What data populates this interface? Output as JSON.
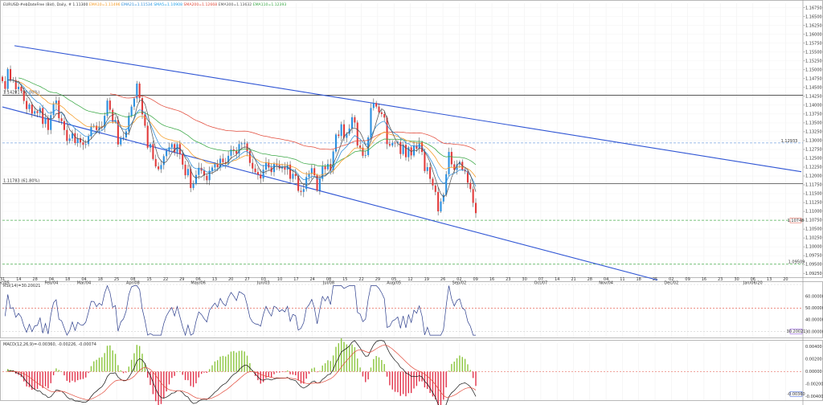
{
  "header": {
    "symbol": "EURUSD-#ebDateFree (Bid), Daily, # 1.11300",
    "indicators": [
      {
        "text": "EMA10=1.11496",
        "color": "#f59a23"
      },
      {
        "text": "EMA21=1.11534",
        "color": "#2b8cd8"
      },
      {
        "text": "SMA5=1.10908",
        "color": "#1f9fe8"
      },
      {
        "text": "SMA200=1.12668",
        "color": "#e24b3b"
      },
      {
        "text": "EMA300=1.13632",
        "color": "#555555"
      },
      {
        "text": "EMA110=1.12393",
        "color": "#3aa845"
      }
    ]
  },
  "chart_data": [
    {
      "type": "candlestick",
      "name": "price",
      "x_labels": [
        "31 Dec/05",
        "14",
        "28",
        "04 Feb/04",
        "18",
        "04 Mar/04",
        "18",
        "25",
        "08 Apr/08",
        "15",
        "22",
        "29",
        "06 May/06",
        "13",
        "20",
        "27",
        "03 Jun/03",
        "10",
        "17",
        "24",
        "08 Jul/08",
        "15",
        "22",
        "29",
        "05 Aug/05",
        "12",
        "19",
        "26",
        "02 Sep/02",
        "09",
        "16",
        "23",
        "30",
        "07 Oct/07",
        "14",
        "21",
        "28",
        "04 Nov/04",
        "11",
        "18",
        "25",
        "02 Dec/02",
        "09",
        "16",
        "23",
        "30",
        "06 Jan/06/20",
        "13",
        "20"
      ],
      "x_labels_display": [
        "31",
        "14",
        "28",
        "04",
        "18",
        "04",
        "18",
        "25",
        "08",
        "15",
        "22",
        "29",
        "06",
        "13",
        "20",
        "27",
        "03",
        "10",
        "17",
        "24",
        "08",
        "15",
        "22",
        "29",
        "05",
        "12",
        "19",
        "26",
        "02",
        "09",
        "16",
        "23",
        "30",
        "07",
        "14",
        "21",
        "28",
        "04",
        "11",
        "18",
        "25",
        "02",
        "09",
        "16",
        "23",
        "30",
        "06",
        "13",
        "20"
      ],
      "x_sub_labels": [
        "Dec/05",
        "Feb/04",
        "Mar/04",
        "Apr/08",
        "May/06",
        "Jun/03",
        "Jul/08",
        "Aug/05",
        "Sep/02",
        "Oct/07",
        "Nov/04",
        "Dec/02",
        "Jan/06/20"
      ],
      "y_ticks": [
        "1.16750",
        "1.16500",
        "1.16250",
        "1.16000",
        "1.15750",
        "1.15500",
        "1.15250",
        "1.15000",
        "1.14750",
        "1.14500",
        "1.14250",
        "1.14000",
        "1.13750",
        "1.13500",
        "1.13250",
        "1.13000",
        "1.12750",
        "1.12500",
        "1.12250",
        "1.12000",
        "1.11750",
        "1.11500",
        "1.11250",
        "1.11000",
        "1.10750",
        "1.10500",
        "1.10250",
        "1.10000",
        "1.09750",
        "1.09500",
        "1.09250"
      ],
      "ylim": [
        1.0914,
        1.1688
      ],
      "closes": [
        1.1468,
        1.1446,
        1.1502,
        1.1469,
        1.1471,
        1.1445,
        1.1452,
        1.144,
        1.1412,
        1.1389,
        1.1402,
        1.1376,
        1.1383,
        1.1378,
        1.1392,
        1.1347,
        1.1364,
        1.133,
        1.1372,
        1.1403,
        1.1413,
        1.1363,
        1.1355,
        1.133,
        1.1299,
        1.1306,
        1.1321,
        1.1293,
        1.1307,
        1.1295,
        1.1288,
        1.129,
        1.1312,
        1.134,
        1.1342,
        1.133,
        1.134,
        1.1336,
        1.137,
        1.1413,
        1.1387,
        1.1353,
        1.1358,
        1.1289,
        1.1306,
        1.1309,
        1.1326,
        1.137,
        1.1396,
        1.1419,
        1.1461,
        1.142,
        1.1374,
        1.1342,
        1.128,
        1.129,
        1.1248,
        1.1227,
        1.1219,
        1.1231,
        1.1256,
        1.1271,
        1.1281,
        1.129,
        1.1267,
        1.129,
        1.1262,
        1.1232,
        1.1202,
        1.122,
        1.1166,
        1.1178,
        1.1203,
        1.1223,
        1.1215,
        1.1201,
        1.1188,
        1.1215,
        1.1224,
        1.1234,
        1.1225,
        1.1249,
        1.1239,
        1.1234,
        1.1257,
        1.1275,
        1.1271,
        1.1263,
        1.129,
        1.1292,
        1.1292,
        1.127,
        1.1237,
        1.1221,
        1.1211,
        1.1204,
        1.1193,
        1.1218,
        1.1238,
        1.1224,
        1.1211,
        1.1235,
        1.1231,
        1.1221,
        1.1225,
        1.1218,
        1.1232,
        1.1192,
        1.1206,
        1.12,
        1.1158,
        1.1155,
        1.1163,
        1.1197,
        1.1206,
        1.1222,
        1.1202,
        1.1159,
        1.1192,
        1.1227,
        1.1219,
        1.1234,
        1.1216,
        1.1269,
        1.1317,
        1.1313,
        1.1346,
        1.1308,
        1.1319,
        1.1334,
        1.1366,
        1.1351,
        1.1286,
        1.128,
        1.1257,
        1.1259,
        1.1309,
        1.1392,
        1.1406,
        1.1396,
        1.138,
        1.1375,
        1.1365,
        1.129,
        1.1286,
        1.1294,
        1.1293,
        1.1296,
        1.1262,
        1.1288,
        1.1253,
        1.1281,
        1.1258,
        1.1286,
        1.1277,
        1.1295,
        1.1268,
        1.1214,
        1.1225,
        1.1192,
        1.1173,
        1.1155,
        1.11,
        1.1128,
        1.1147,
        1.1205,
        1.1268,
        1.1233,
        1.1217,
        1.1233,
        1.124,
        1.1218,
        1.1213,
        1.1181,
        1.1163,
        1.1124,
        1.1095
      ],
      "current_price": 1.10748,
      "horizontal_lines": [
        {
          "label": "1.14281 (50.00%)",
          "value": 1.14281
        },
        {
          "label": "1.11783 (61.80%)",
          "value": 1.11783
        },
        {
          "label": "1.12933",
          "value": 1.12933,
          "style": "dashed-blue"
        },
        {
          "label": "1.10748",
          "value": 1.10748,
          "style": "dashed-green"
        },
        {
          "label": "1.09509",
          "value": 1.09509,
          "style": "dashed-green"
        }
      ],
      "channel": {
        "upper": [
          [
            1.1568,
            0
          ],
          [
            1.1212,
            1
          ]
        ],
        "lower": [
          [
            1.1395,
            0
          ],
          [
            1.0906,
            0.82
          ]
        ]
      },
      "moving_averages": [
        {
          "name": "SMA200",
          "color": "#e24b3b"
        },
        {
          "name": "EMA110",
          "color": "#3aa845"
        },
        {
          "name": "EMA21",
          "color": "#f59a23"
        },
        {
          "name": "EMA10",
          "color": "#2b8cd8"
        },
        {
          "name": "SMA5",
          "color": "#555555"
        }
      ]
    },
    {
      "type": "line",
      "name": "RSI",
      "title": "RSI(14)=30.20021",
      "y_ticks": [
        "60.00000",
        "50.00000",
        "40.00000",
        "30.00000"
      ],
      "ylim": [
        25,
        70
      ],
      "levels": [
        70,
        50,
        30
      ],
      "current_label": "30.20021"
    },
    {
      "type": "bar",
      "name": "MACD",
      "title": "MACD(12,26,9)=-0.00360, -0.00226, -0.00074",
      "y_ticks": [
        "0.00400",
        "0.00200",
        "0.00000",
        "-0.00200",
        "-0.00400"
      ],
      "ylim": [
        -0.0046,
        0.0046
      ],
      "current_label": "-0.00360"
    }
  ]
}
